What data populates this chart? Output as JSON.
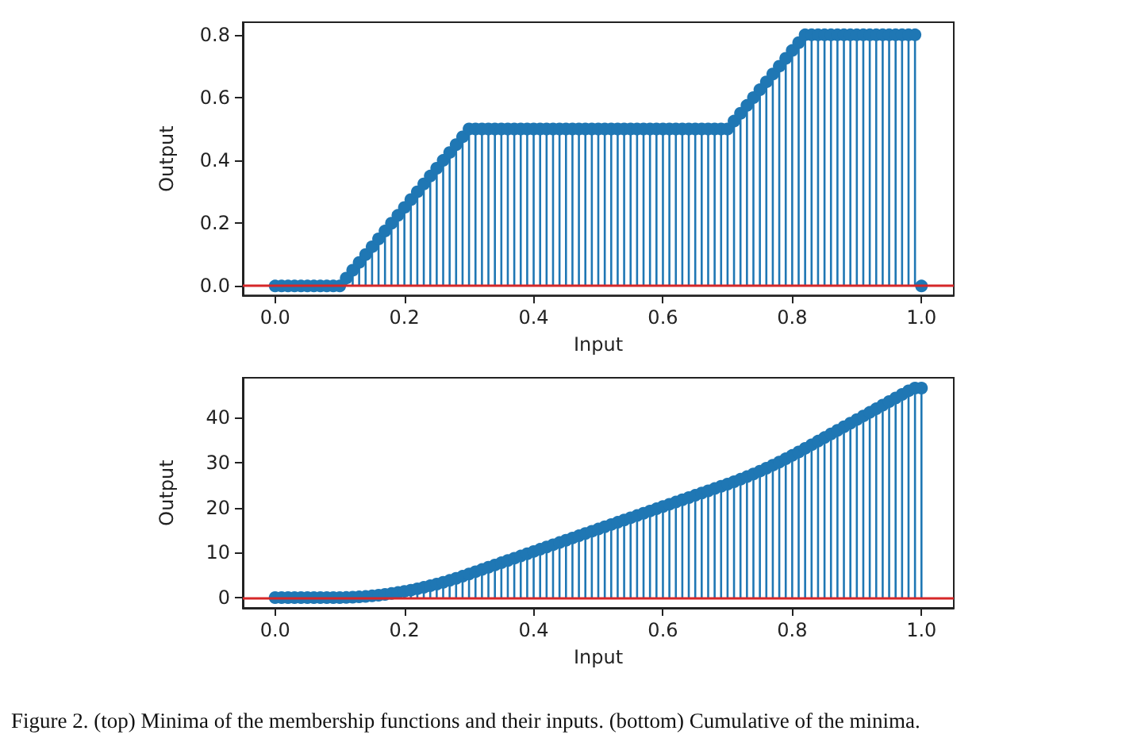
{
  "chart_data": [
    {
      "type": "lollipop",
      "xlabel": "Input",
      "ylabel": "Output",
      "marker": "circle",
      "grid": false,
      "xlim": [
        -0.05,
        1.05
      ],
      "xticks": [
        "0.0",
        0.2,
        0.4,
        0.6,
        0.8,
        "1.0"
      ],
      "ylim": [
        -0.03,
        0.84
      ],
      "yticks": [
        "0.0",
        0.2,
        0.4,
        0.6,
        0.8
      ],
      "x": [
        0,
        0.01,
        0.02,
        0.03,
        0.04,
        0.05,
        0.06,
        0.07,
        0.08,
        0.09,
        0.1,
        0.11,
        0.12,
        0.13,
        0.14,
        0.15,
        0.16,
        0.17,
        0.18,
        0.19,
        0.2,
        0.21,
        0.22,
        0.23,
        0.24,
        0.25,
        0.26,
        0.27,
        0.28,
        0.29,
        0.3,
        0.31,
        0.32,
        0.33,
        0.34,
        0.35,
        0.36,
        0.37,
        0.38,
        0.39,
        0.4,
        0.41,
        0.42,
        0.43,
        0.44,
        0.45,
        0.46,
        0.47,
        0.48,
        0.49,
        0.5,
        0.51,
        0.52,
        0.53,
        0.54,
        0.55,
        0.56,
        0.57,
        0.58,
        0.59,
        0.6,
        0.61,
        0.62,
        0.63,
        0.64,
        0.65,
        0.66,
        0.67,
        0.68,
        0.69,
        0.7,
        0.71,
        0.72,
        0.73,
        0.74,
        0.75,
        0.76,
        0.77,
        0.78,
        0.79,
        0.8,
        0.81,
        0.82,
        0.83,
        0.84,
        0.85,
        0.86,
        0.87,
        0.88,
        0.89,
        0.9,
        0.91,
        0.92,
        0.93,
        0.94,
        0.95,
        0.96,
        0.97,
        0.98,
        0.99,
        1
      ],
      "series": [
        {
          "color": "#1f77b4",
          "values": [
            0,
            0,
            0,
            0,
            0,
            0,
            0,
            0,
            0,
            0,
            0,
            0.025,
            0.05,
            0.075,
            0.1,
            0.125,
            0.15,
            0.175,
            0.2,
            0.225,
            0.25,
            0.275,
            0.3,
            0.325,
            0.35,
            0.375,
            0.4,
            0.425,
            0.45,
            0.475,
            0.5,
            0.5,
            0.5,
            0.5,
            0.5,
            0.5,
            0.5,
            0.5,
            0.5,
            0.5,
            0.5,
            0.5,
            0.5,
            0.5,
            0.5,
            0.5,
            0.5,
            0.5,
            0.5,
            0.5,
            0.5,
            0.5,
            0.5,
            0.5,
            0.5,
            0.5,
            0.5,
            0.5,
            0.5,
            0.5,
            0.5,
            0.5,
            0.5,
            0.5,
            0.5,
            0.5,
            0.5,
            0.5,
            0.5,
            0.5,
            0.5,
            0.525,
            0.55,
            0.575,
            0.6,
            0.625,
            0.65,
            0.675,
            0.7,
            0.725,
            0.75,
            0.775,
            0.8,
            0.8,
            0.8,
            0.8,
            0.8,
            0.8,
            0.8,
            0.8,
            0.8,
            0.8,
            0.8,
            0.8,
            0.8,
            0.8,
            0.8,
            0.8,
            0.8,
            0.8,
            0
          ]
        }
      ],
      "ref_lines": [
        {
          "axis": "y",
          "value": 0,
          "color": "#d62728"
        }
      ]
    },
    {
      "type": "lollipop",
      "xlabel": "Input",
      "ylabel": "Output",
      "marker": "circle",
      "grid": false,
      "xlim": [
        -0.05,
        1.05
      ],
      "xticks": [
        "0.0",
        0.2,
        0.4,
        0.6,
        0.8,
        "1.0"
      ],
      "ylim": [
        -2.3,
        48.9
      ],
      "yticks": [
        0,
        10,
        20,
        30,
        40
      ],
      "x": [
        0,
        0.01,
        0.02,
        0.03,
        0.04,
        0.05,
        0.06,
        0.07,
        0.08,
        0.09,
        0.1,
        0.11,
        0.12,
        0.13,
        0.14,
        0.15,
        0.16,
        0.17,
        0.18,
        0.19,
        0.2,
        0.21,
        0.22,
        0.23,
        0.24,
        0.25,
        0.26,
        0.27,
        0.28,
        0.29,
        0.3,
        0.31,
        0.32,
        0.33,
        0.34,
        0.35,
        0.36,
        0.37,
        0.38,
        0.39,
        0.4,
        0.41,
        0.42,
        0.43,
        0.44,
        0.45,
        0.46,
        0.47,
        0.48,
        0.49,
        0.5,
        0.51,
        0.52,
        0.53,
        0.54,
        0.55,
        0.56,
        0.57,
        0.58,
        0.59,
        0.6,
        0.61,
        0.62,
        0.63,
        0.64,
        0.65,
        0.66,
        0.67,
        0.68,
        0.69,
        0.7,
        0.71,
        0.72,
        0.73,
        0.74,
        0.75,
        0.76,
        0.77,
        0.78,
        0.79,
        0.8,
        0.81,
        0.82,
        0.83,
        0.84,
        0.85,
        0.86,
        0.87,
        0.88,
        0.89,
        0.9,
        0.91,
        0.92,
        0.93,
        0.94,
        0.95,
        0.96,
        0.97,
        0.98,
        0.99,
        1
      ],
      "series": [
        {
          "color": "#1f77b4",
          "values": [
            0,
            0,
            0,
            0,
            0,
            0,
            0,
            0,
            0,
            0,
            0,
            0.025,
            0.075,
            0.15,
            0.25,
            0.375,
            0.525,
            0.7,
            0.9,
            1.125,
            1.375,
            1.65,
            1.95,
            2.275,
            2.625,
            3,
            3.4,
            3.825,
            4.275,
            4.75,
            5.25,
            5.75,
            6.25,
            6.75,
            7.25,
            7.75,
            8.25,
            8.75,
            9.25,
            9.75,
            10.25,
            10.75,
            11.25,
            11.75,
            12.25,
            12.75,
            13.25,
            13.75,
            14.25,
            14.75,
            15.25,
            15.75,
            16.25,
            16.75,
            17.25,
            17.75,
            18.25,
            18.75,
            19.25,
            19.75,
            20.25,
            20.75,
            21.25,
            21.75,
            22.25,
            22.75,
            23.25,
            23.75,
            24.25,
            24.75,
            25.25,
            25.775,
            26.325,
            26.9,
            27.5,
            28.125,
            28.775,
            29.45,
            30.15,
            30.875,
            31.625,
            32.4,
            33.2,
            34,
            34.8,
            35.6,
            36.4,
            37.2,
            38,
            38.8,
            39.6,
            40.4,
            41.2,
            42,
            42.8,
            43.6,
            44.4,
            45.2,
            46,
            46.6,
            46.6
          ]
        }
      ],
      "ref_lines": [
        {
          "axis": "y",
          "value": 0,
          "color": "#d62728"
        }
      ],
      "annotations": [
        "Figure 2. (top) Minima of the membership functions and their inputs. (bottom) Cumulative of the minima."
      ]
    }
  ]
}
